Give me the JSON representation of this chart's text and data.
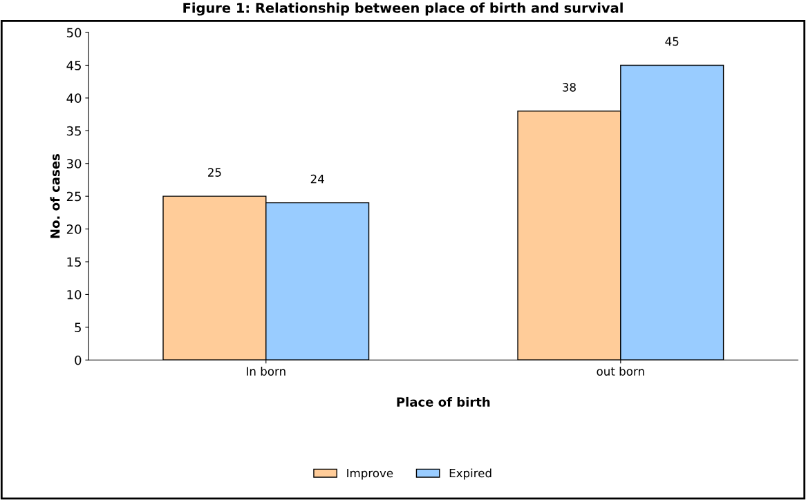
{
  "chart_data": {
    "type": "bar",
    "title": "Figure 1: Relationship between place of birth and survival",
    "xlabel": "Place of birth",
    "ylabel": "No. of cases",
    "categories": [
      "In born",
      "out born"
    ],
    "series": [
      {
        "name": "Improve",
        "color": "#ffcc99",
        "values": [
          25,
          38
        ]
      },
      {
        "name": "Expired",
        "color": "#99ccff",
        "values": [
          24,
          45
        ]
      }
    ],
    "ylim": [
      0,
      50
    ],
    "yticks": [
      0,
      5,
      10,
      15,
      20,
      25,
      30,
      35,
      40,
      45,
      50
    ],
    "data_labels": true,
    "grid": false,
    "legend": "bottom"
  }
}
